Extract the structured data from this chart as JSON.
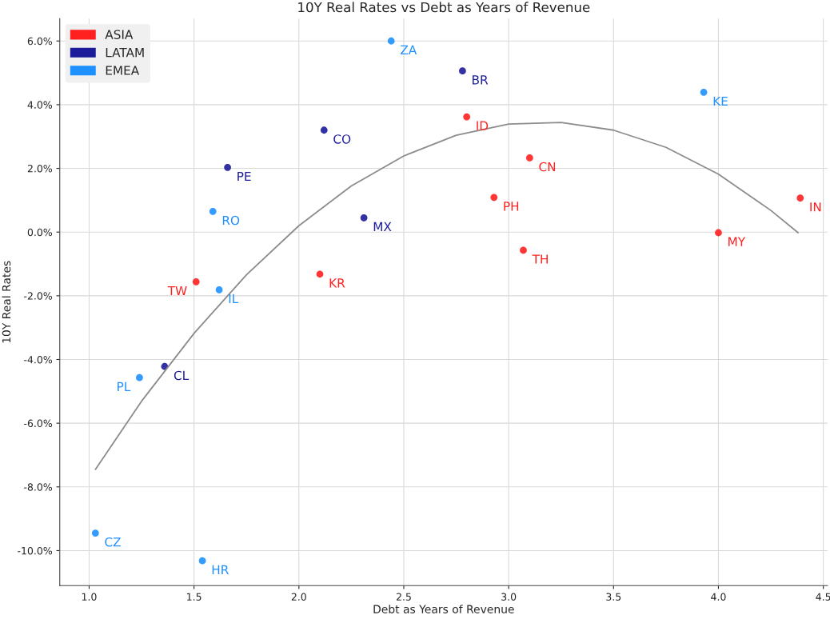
{
  "chart_data": {
    "type": "scatter",
    "title": "10Y Real Rates vs Debt as Years of Revenue",
    "xlabel": "Debt as Years of Revenue",
    "ylabel": "10Y Real Rates",
    "series": [
      {
        "name": "ASIA",
        "marker": "circle",
        "color": "#ff2020",
        "x": [
          2.8,
          3.1,
          2.93,
          4.39,
          4.0,
          3.07,
          2.1,
          1.51
        ],
        "values": [
          3.62,
          2.33,
          1.09,
          1.07,
          -0.02,
          -0.57,
          -1.32,
          -1.56
        ],
        "value_labels": [
          "ID",
          "CN",
          "PH",
          "IN",
          "MY",
          "TH",
          "KR",
          "TW"
        ]
      },
      {
        "name": "LATAM",
        "marker": "circle",
        "color": "#1c1c9a",
        "x": [
          2.78,
          2.12,
          1.66,
          2.31,
          1.36
        ],
        "values": [
          5.06,
          3.2,
          2.03,
          0.45,
          -4.22
        ],
        "value_labels": [
          "BR",
          "CO",
          "PE",
          "MX",
          "CL"
        ]
      },
      {
        "name": "EMEA",
        "marker": "circle",
        "color": "#1e90ff",
        "x": [
          2.44,
          3.93,
          1.59,
          1.62,
          1.24,
          1.03,
          1.54
        ],
        "values": [
          6.0,
          4.39,
          0.65,
          -1.81,
          -4.57,
          -9.45,
          -10.32
        ],
        "value_labels": [
          "ZA",
          "KE",
          "RO",
          "IL",
          "PL",
          "CZ",
          "HR"
        ]
      },
      {
        "type": "line",
        "color": "#8c8c8c",
        "x": [
          1.03,
          1.25,
          1.5,
          1.75,
          2.0,
          2.25,
          2.5,
          2.75,
          3.0,
          3.25,
          3.5,
          3.75,
          4.0,
          4.25,
          4.38
        ],
        "values": [
          -7.45,
          -5.31,
          -3.18,
          -1.34,
          0.2,
          1.45,
          2.39,
          3.04,
          3.39,
          3.44,
          3.2,
          2.66,
          1.82,
          0.68,
          -0.02
        ]
      }
    ],
    "xlim": [
      0.86,
      4.52
    ],
    "ylim": [
      -11.1,
      6.7
    ],
    "xticks": [
      {
        "value": 1.0,
        "label": "1.0"
      },
      {
        "value": 1.5,
        "label": "1.5"
      },
      {
        "value": 2.0,
        "label": "2.0"
      },
      {
        "value": 2.5,
        "label": "2.5"
      },
      {
        "value": 3.0,
        "label": "3.0"
      },
      {
        "value": 3.5,
        "label": "3.5"
      },
      {
        "value": 4.0,
        "label": "4.0"
      },
      {
        "value": 4.5,
        "label": "4.5"
      }
    ],
    "yticks": [
      {
        "value": -10,
        "label": "-10.0%"
      },
      {
        "value": -8,
        "label": "-8.0%"
      },
      {
        "value": -6,
        "label": "-6.0%"
      },
      {
        "value": -4,
        "label": "-4.0%"
      },
      {
        "value": -2,
        "label": "-2.0%"
      },
      {
        "value": 0,
        "label": "0.0%"
      },
      {
        "value": 2,
        "label": "2.0%"
      },
      {
        "value": 4,
        "label": "4.0%"
      },
      {
        "value": 6,
        "label": "6.0%"
      }
    ],
    "grid": true,
    "legend": "top left"
  }
}
